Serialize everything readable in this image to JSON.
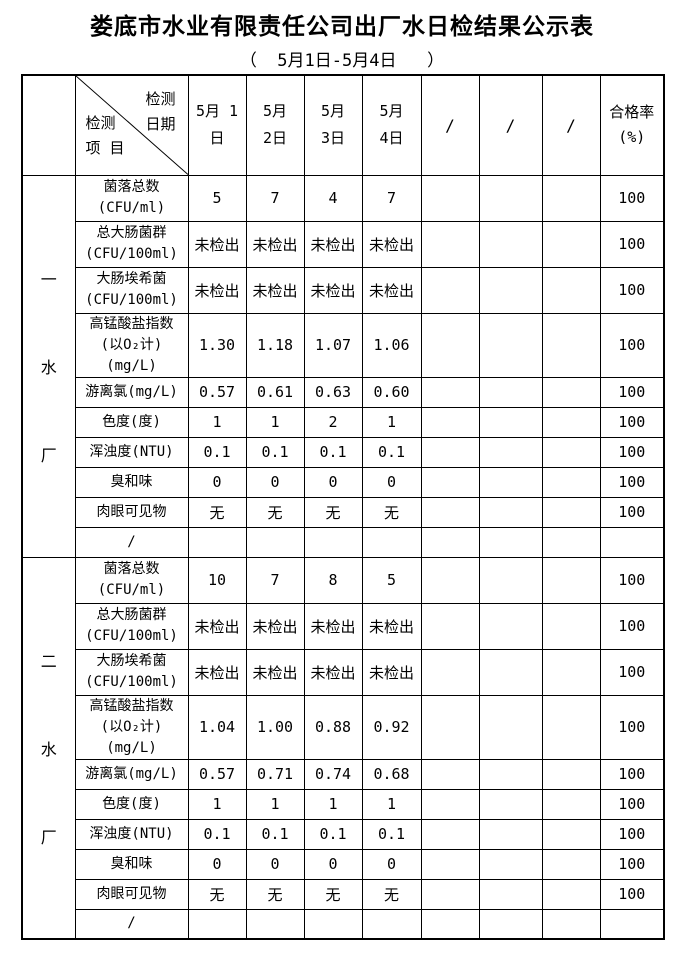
{
  "page": {
    "title": "娄底市水业有限责任公司出厂水日检结果公示表",
    "subtitle": "（  5月1日-5月4日   ）"
  },
  "table": {
    "corner": {
      "top_label": "检测\n日期",
      "bottom_label": "检测\n项 目"
    },
    "headers": {
      "dates": [
        "5月 1\n日",
        "5月\n2日",
        "5月\n3日",
        "5月\n4日"
      ],
      "slashes": [
        "/",
        "/",
        "/"
      ],
      "rate": "合格率\n(%)"
    },
    "sections": [
      {
        "plant_name": "一水厂",
        "plant_chars": [
          "一",
          "水",
          "厂"
        ],
        "rows": [
          {
            "item": "菌落总数\n(CFU/ml)",
            "values": [
              "5",
              "7",
              "4",
              "7"
            ],
            "rate": "100"
          },
          {
            "item": "总大肠菌群\n(CFU/100ml)",
            "values": [
              "未检出",
              "未检出",
              "未检出",
              "未检出"
            ],
            "rate": "100"
          },
          {
            "item": "大肠埃希菌\n(CFU/100ml)",
            "values": [
              "未检出",
              "未检出",
              "未检出",
              "未检出"
            ],
            "rate": "100"
          },
          {
            "item": "高锰酸盐指数\n(以O₂计)\n(mg/L)",
            "values": [
              "1.30",
              "1.18",
              "1.07",
              "1.06"
            ],
            "rate": "100"
          },
          {
            "item": "游离氯(mg/L)",
            "values": [
              "0.57",
              "0.61",
              "0.63",
              "0.60"
            ],
            "rate": "100"
          },
          {
            "item": "色度(度)",
            "values": [
              "1",
              "1",
              "2",
              "1"
            ],
            "rate": "100"
          },
          {
            "item": "浑浊度(NTU)",
            "values": [
              "0.1",
              "0.1",
              "0.1",
              "0.1"
            ],
            "rate": "100"
          },
          {
            "item": "臭和味",
            "values": [
              "0",
              "0",
              "0",
              "0"
            ],
            "rate": "100"
          },
          {
            "item": "肉眼可见物",
            "values": [
              "无",
              "无",
              "无",
              "无"
            ],
            "rate": "100"
          },
          {
            "item": "/",
            "values": [
              "",
              "",
              "",
              ""
            ],
            "rate": ""
          }
        ]
      },
      {
        "plant_name": "二水厂",
        "plant_chars": [
          "二",
          "水",
          "厂"
        ],
        "rows": [
          {
            "item": "菌落总数\n(CFU/ml)",
            "values": [
              "10",
              "7",
              "8",
              "5"
            ],
            "rate": "100"
          },
          {
            "item": "总大肠菌群\n(CFU/100ml)",
            "values": [
              "未检出",
              "未检出",
              "未检出",
              "未检出"
            ],
            "rate": "100"
          },
          {
            "item": "大肠埃希菌\n(CFU/100ml)",
            "values": [
              "未检出",
              "未检出",
              "未检出",
              "未检出"
            ],
            "rate": "100"
          },
          {
            "item": "高锰酸盐指数\n(以O₂计)\n(mg/L)",
            "values": [
              "1.04",
              "1.00",
              "0.88",
              "0.92"
            ],
            "rate": "100"
          },
          {
            "item": "游离氯(mg/L)",
            "values": [
              "0.57",
              "0.71",
              "0.74",
              "0.68"
            ],
            "rate": "100"
          },
          {
            "item": "色度(度)",
            "values": [
              "1",
              "1",
              "1",
              "1"
            ],
            "rate": "100"
          },
          {
            "item": "浑浊度(NTU)",
            "values": [
              "0.1",
              "0.1",
              "0.1",
              "0.1"
            ],
            "rate": "100"
          },
          {
            "item": "臭和味",
            "values": [
              "0",
              "0",
              "0",
              "0"
            ],
            "rate": "100"
          },
          {
            "item": "肉眼可见物",
            "values": [
              "无",
              "无",
              "无",
              "无"
            ],
            "rate": "100"
          },
          {
            "item": "/",
            "values": [
              "",
              "",
              "",
              ""
            ],
            "rate": ""
          }
        ]
      }
    ]
  }
}
